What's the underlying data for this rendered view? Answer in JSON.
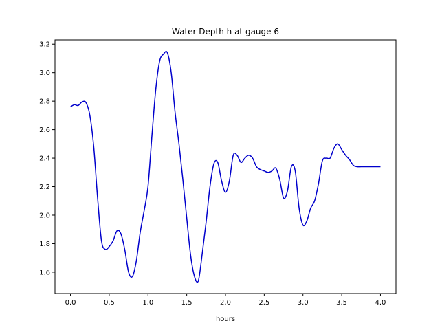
{
  "chart_data": {
    "type": "line",
    "title": "Water Depth h at gauge 6",
    "xlabel": "hours",
    "ylabel": "",
    "xlim": [
      -0.2,
      4.2
    ],
    "ylim": [
      1.45,
      3.23
    ],
    "xticks": [
      0.0,
      0.5,
      1.0,
      1.5,
      2.0,
      2.5,
      3.0,
      3.5,
      4.0
    ],
    "xtick_labels": [
      "0.0",
      "0.5",
      "1.0",
      "1.5",
      "2.0",
      "2.5",
      "3.0",
      "3.5",
      "4.0"
    ],
    "yticks": [
      1.6,
      1.8,
      2.0,
      2.2,
      2.4,
      2.6,
      2.8,
      3.0,
      3.2
    ],
    "ytick_labels": [
      "1.6",
      "1.8",
      "2.0",
      "2.2",
      "2.4",
      "2.6",
      "2.8",
      "3.0",
      "3.2"
    ],
    "grid": false,
    "series": [
      {
        "name": "",
        "color": "#0000cc",
        "x": [
          0.0,
          0.05,
          0.1,
          0.15,
          0.2,
          0.25,
          0.3,
          0.35,
          0.4,
          0.45,
          0.5,
          0.55,
          0.6,
          0.65,
          0.7,
          0.75,
          0.8,
          0.85,
          0.9,
          0.95,
          1.0,
          1.05,
          1.1,
          1.15,
          1.2,
          1.25,
          1.3,
          1.35,
          1.4,
          1.45,
          1.5,
          1.55,
          1.6,
          1.65,
          1.7,
          1.75,
          1.8,
          1.85,
          1.9,
          1.95,
          2.0,
          2.05,
          2.1,
          2.15,
          2.2,
          2.25,
          2.3,
          2.35,
          2.4,
          2.45,
          2.5,
          2.55,
          2.6,
          2.65,
          2.7,
          2.75,
          2.8,
          2.85,
          2.9,
          2.95,
          3.0,
          3.05,
          3.1,
          3.15,
          3.2,
          3.25,
          3.3,
          3.35,
          3.4,
          3.45,
          3.5,
          3.55,
          3.6,
          3.65,
          3.7,
          3.75,
          3.8,
          3.85,
          3.9,
          3.95,
          4.0
        ],
        "y": [
          2.76,
          2.775,
          2.77,
          2.795,
          2.79,
          2.7,
          2.48,
          2.12,
          1.82,
          1.76,
          1.78,
          1.82,
          1.89,
          1.87,
          1.76,
          1.6,
          1.57,
          1.68,
          1.88,
          2.03,
          2.2,
          2.55,
          2.88,
          3.08,
          3.13,
          3.14,
          3.0,
          2.72,
          2.5,
          2.25,
          1.98,
          1.72,
          1.57,
          1.54,
          1.73,
          1.95,
          2.2,
          2.36,
          2.37,
          2.24,
          2.16,
          2.24,
          2.42,
          2.42,
          2.37,
          2.4,
          2.42,
          2.4,
          2.34,
          2.32,
          2.31,
          2.3,
          2.31,
          2.33,
          2.25,
          2.12,
          2.17,
          2.34,
          2.31,
          2.05,
          1.93,
          1.96,
          2.05,
          2.1,
          2.22,
          2.38,
          2.4,
          2.4,
          2.47,
          2.5,
          2.46,
          2.42,
          2.39,
          2.35,
          2.34,
          2.34,
          2.34,
          2.34,
          2.34,
          2.34,
          2.34
        ]
      }
    ]
  }
}
